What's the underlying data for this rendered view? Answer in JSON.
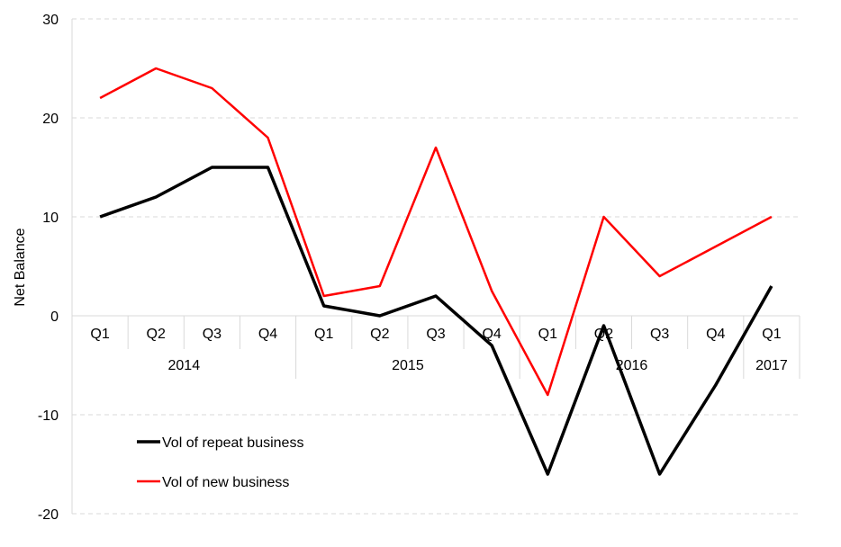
{
  "chart_data": {
    "type": "line",
    "ylabel": "Net Balance",
    "xlabel": "",
    "ylim": [
      -20,
      30
    ],
    "yticks": [
      -20,
      -10,
      0,
      10,
      20,
      30
    ],
    "grid": true,
    "categories": [
      "Q1",
      "Q2",
      "Q3",
      "Q4",
      "Q1",
      "Q2",
      "Q3",
      "Q4",
      "Q1",
      "Q2",
      "Q3",
      "Q4",
      "Q1"
    ],
    "year_groups": [
      {
        "label": "2014",
        "count": 4
      },
      {
        "label": "2015",
        "count": 4
      },
      {
        "label": "2016",
        "count": 4
      },
      {
        "label": "2017",
        "count": 1
      }
    ],
    "series": [
      {
        "name": "Vol of repeat business",
        "color": "#000000",
        "values": [
          10,
          12,
          15,
          15,
          1,
          0,
          2,
          -3,
          -16,
          -1,
          -16,
          -7,
          3
        ]
      },
      {
        "name": "Vol of new business",
        "color": "#ff0000",
        "values": [
          22,
          25,
          23,
          18,
          2,
          3,
          17,
          2.5,
          -8,
          10,
          4,
          7,
          10
        ]
      }
    ],
    "legend_position": "bottom-left"
  }
}
